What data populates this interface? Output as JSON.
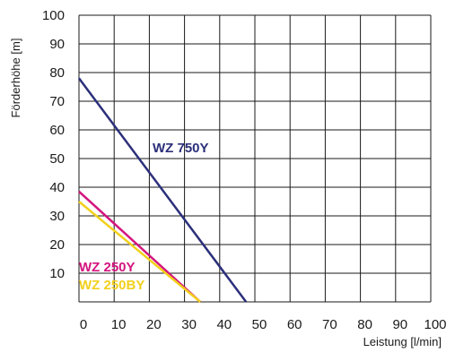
{
  "chart_data": {
    "type": "line",
    "xlabel": "Leistung  [l/min]",
    "ylabel": "Förderhöhe  [m]",
    "xlim": [
      0,
      100
    ],
    "ylim": [
      0,
      100
    ],
    "x_ticks": [
      0,
      10,
      20,
      30,
      40,
      50,
      60,
      70,
      80,
      90,
      100
    ],
    "y_ticks": [
      10,
      20,
      30,
      40,
      50,
      60,
      70,
      80,
      90,
      100
    ],
    "grid": true,
    "series": [
      {
        "name": "WZ 750Y",
        "color": "#2b2f7a",
        "points": [
          [
            0,
            78
          ],
          [
            47.5,
            0
          ]
        ]
      },
      {
        "name": "WZ 250Y",
        "color": "#d4147e",
        "points": [
          [
            0,
            38.5
          ],
          [
            34.5,
            0
          ]
        ]
      },
      {
        "name": "WZ 250BY",
        "color": "#f2d01c",
        "points": [
          [
            0,
            35
          ],
          [
            34.5,
            0
          ]
        ]
      }
    ]
  }
}
